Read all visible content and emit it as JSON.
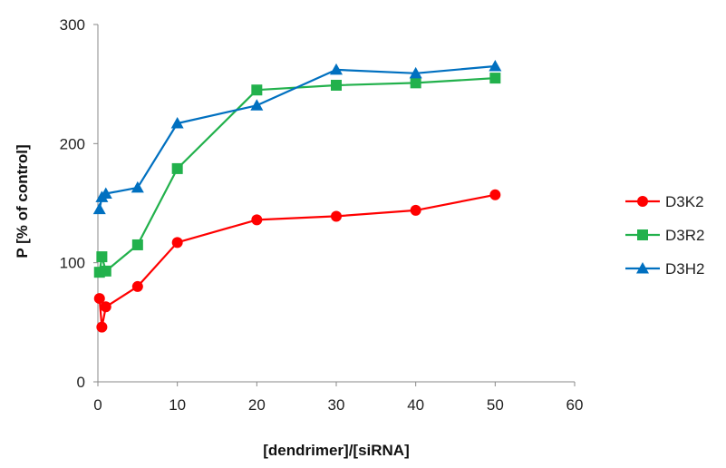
{
  "chart_data": {
    "type": "line",
    "title": "",
    "xlabel": "[dendrimer]/[siRNA]",
    "ylabel": "P [% of control]",
    "xlim": [
      0,
      60
    ],
    "ylim": [
      0,
      300
    ],
    "xticks": [
      0,
      10,
      20,
      30,
      40,
      50,
      60
    ],
    "yticks": [
      0,
      100,
      200,
      300
    ],
    "grid": false,
    "legend_position": "right",
    "series": [
      {
        "name": "D3K2",
        "color": "#ff0000",
        "marker": "circle",
        "points": [
          [
            0.2,
            70
          ],
          [
            0.5,
            46
          ],
          [
            1,
            63
          ],
          [
            5,
            80
          ],
          [
            10,
            117
          ],
          [
            20,
            136
          ],
          [
            30,
            139
          ],
          [
            40,
            144
          ],
          [
            50,
            157
          ]
        ]
      },
      {
        "name": "D3R2",
        "color": "#22b14c",
        "marker": "square",
        "points": [
          [
            0.2,
            92
          ],
          [
            0.5,
            105
          ],
          [
            1,
            93
          ],
          [
            5,
            115
          ],
          [
            10,
            179
          ],
          [
            20,
            245
          ],
          [
            30,
            249
          ],
          [
            40,
            251
          ],
          [
            50,
            255
          ]
        ]
      },
      {
        "name": "D3H2",
        "color": "#0070c0",
        "marker": "triangle",
        "points": [
          [
            0.2,
            145
          ],
          [
            0.5,
            155
          ],
          [
            1,
            158
          ],
          [
            5,
            163
          ],
          [
            10,
            217
          ],
          [
            20,
            232
          ],
          [
            30,
            262
          ],
          [
            40,
            259
          ],
          [
            50,
            265
          ]
        ]
      }
    ]
  }
}
